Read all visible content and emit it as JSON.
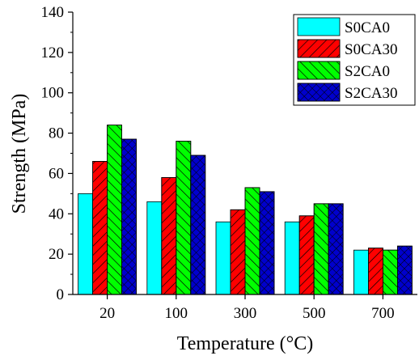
{
  "chart_data": {
    "type": "bar",
    "title": "",
    "xlabel": "Temperature (°C)",
    "ylabel": "Strength (MPa)",
    "categories": [
      "20",
      "100",
      "300",
      "500",
      "700"
    ],
    "ylim": [
      0,
      140
    ],
    "yticks": [
      "0",
      "20",
      "40",
      "60",
      "80",
      "100",
      "120",
      "140"
    ],
    "grid": false,
    "legend_position": "top-right",
    "series": [
      {
        "name": "S0CA0",
        "values": [
          50,
          46,
          36,
          36,
          22
        ],
        "color": "#00ffff",
        "pattern": "none"
      },
      {
        "name": "S0CA30",
        "values": [
          66,
          58,
          42,
          39,
          23
        ],
        "color": "#ff0000",
        "pattern": "diagonal"
      },
      {
        "name": "S2CA0",
        "values": [
          84,
          76,
          53,
          45,
          22
        ],
        "color": "#00ff00",
        "pattern": "back-diagonal"
      },
      {
        "name": "S2CA30",
        "values": [
          77,
          69,
          51,
          45,
          24
        ],
        "color": "#0000cc",
        "pattern": "crosshatch"
      }
    ]
  }
}
